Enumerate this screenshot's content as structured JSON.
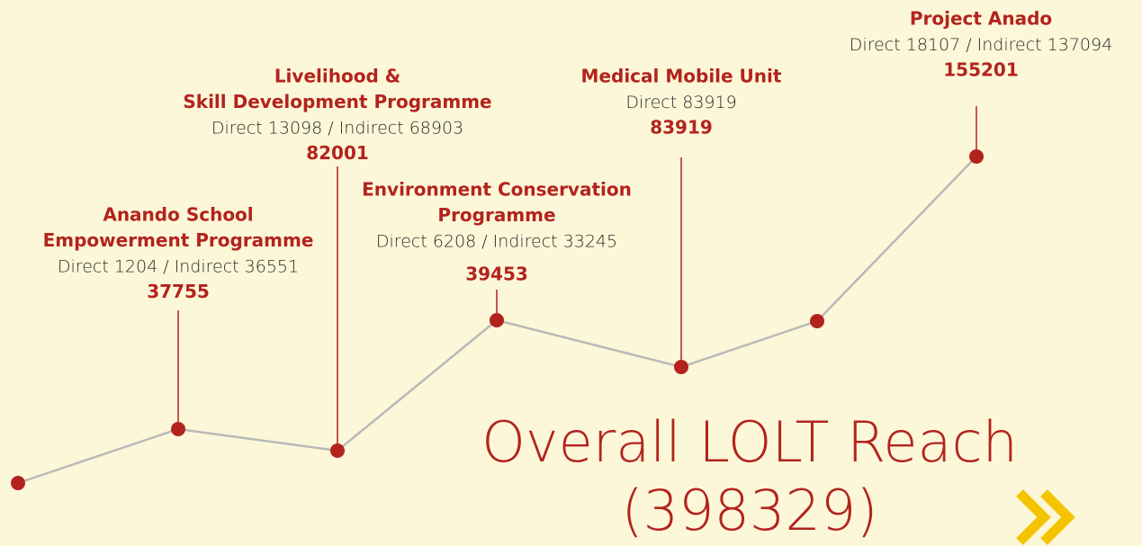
{
  "programmes": [
    {
      "title_lines": [
        "Anando School",
        "Empowerment Programme"
      ],
      "detail": "Direct 1204 / Indirect 36551",
      "total": "37755"
    },
    {
      "title_lines": [
        "Livelihood &",
        "Skill Development Programme"
      ],
      "detail": "Direct 13098 / Indirect 68903",
      "total": "82001"
    },
    {
      "title_lines": [
        "Environment Conservation",
        "Programme"
      ],
      "detail": "Direct 6208 / Indirect 33245",
      "total": "39453"
    },
    {
      "title_lines": [
        "Medical Mobile Unit"
      ],
      "detail": "Direct 83919",
      "total": "83919"
    },
    {
      "title_lines": [
        "Project Anado"
      ],
      "detail": "Direct 18107 / Indirect 137094",
      "total": "155201"
    }
  ],
  "overall": {
    "title": "Overall LOLT Reach",
    "total": "(398329)"
  }
}
